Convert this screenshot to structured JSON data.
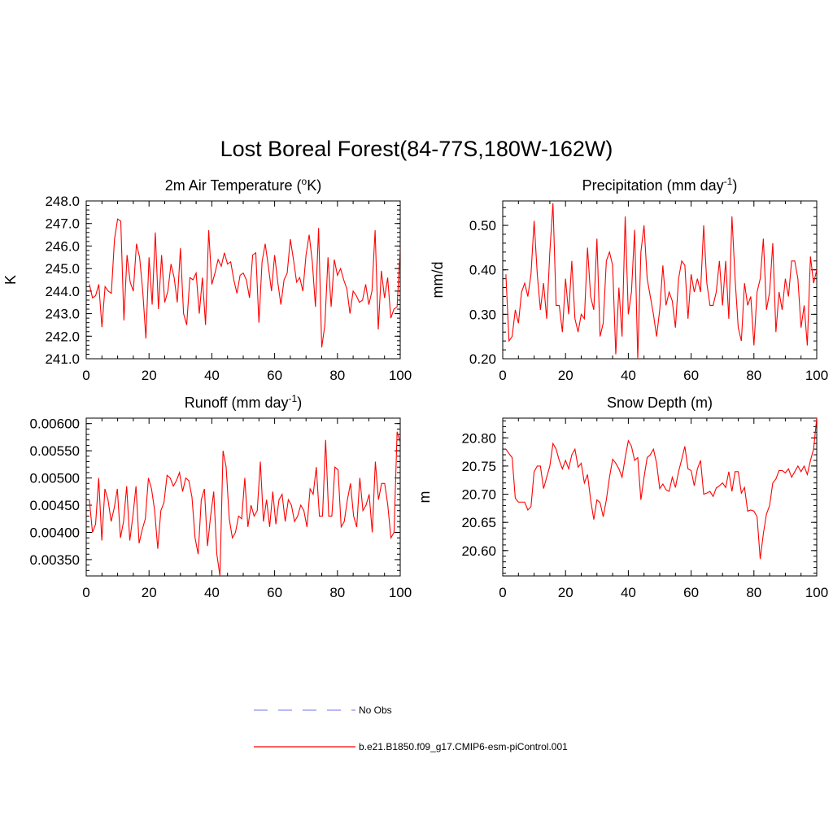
{
  "title": "Lost Boreal Forest(84-77S,180W-162W)",
  "legend": [
    {
      "label": "No Obs",
      "color": "#8f8ff0",
      "dash": true
    },
    {
      "label": "b.e21.B1850.f09_g17.CMIP6-esm-piControl.001",
      "color": "#ff0000",
      "dash": false
    }
  ],
  "chart_data": [
    {
      "type": "line",
      "title_main": "2m Air Temperature (",
      "title_sup": "o",
      "title_end": "K)",
      "ylabel": "K",
      "xlim": [
        0,
        100
      ],
      "ylim": [
        241.0,
        248.0
      ],
      "xticks": [
        0,
        20,
        40,
        60,
        80,
        100
      ],
      "yticks": [
        241.0,
        242.0,
        243.0,
        244.0,
        245.0,
        246.0,
        247.0,
        248.0
      ],
      "ytick_labels": [
        "241.0",
        "242.0",
        "243.0",
        "244.0",
        "245.0",
        "246.0",
        "247.0",
        "248.0"
      ],
      "yminor": 0.2,
      "color": "#ff0000",
      "values": [
        244.3,
        243.7,
        243.8,
        244.3,
        242.4,
        244.2,
        244.0,
        243.9,
        246.3,
        247.2,
        247.1,
        242.7,
        245.6,
        244.4,
        244.0,
        246.1,
        245.5,
        244.0,
        241.9,
        245.5,
        243.4,
        246.6,
        243.2,
        245.6,
        243.5,
        244.0,
        245.2,
        244.6,
        243.5,
        245.9,
        243.0,
        242.5,
        244.6,
        244.5,
        244.8,
        243.0,
        244.6,
        242.5,
        246.7,
        244.3,
        244.8,
        245.4,
        245.1,
        245.7,
        245.2,
        245.3,
        244.5,
        243.9,
        244.7,
        244.8,
        244.5,
        243.7,
        245.6,
        245.7,
        242.6,
        245.3,
        246.1,
        245.1,
        244.0,
        245.6,
        244.4,
        243.4,
        244.5,
        244.8,
        246.3,
        245.4,
        244.4,
        244.6,
        244.0,
        245.6,
        246.5,
        245.3,
        243.3,
        246.8,
        241.5,
        242.5,
        245.5,
        243.3,
        245.4,
        244.7,
        245.0,
        244.5,
        244.1,
        243.0,
        244.0,
        243.8,
        243.5,
        243.6,
        244.3,
        243.4,
        244.0,
        246.7,
        242.3,
        244.9,
        243.7,
        244.6,
        242.8,
        243.2,
        243.3,
        245.9
      ]
    },
    {
      "type": "line",
      "title_main": "Precipitation (mm day",
      "title_sup": "-1",
      "title_end": ")",
      "ylabel": "mm/d",
      "xlim": [
        0,
        100
      ],
      "ylim": [
        0.2,
        0.555
      ],
      "xticks": [
        0,
        20,
        40,
        60,
        80,
        100
      ],
      "yticks": [
        0.2,
        0.3,
        0.4,
        0.5
      ],
      "ytick_labels": [
        "0.20",
        "0.30",
        "0.40",
        "0.50"
      ],
      "yminor": 0.02,
      "color": "#ff0000",
      "values": [
        0.39,
        0.24,
        0.25,
        0.31,
        0.28,
        0.35,
        0.37,
        0.34,
        0.39,
        0.51,
        0.39,
        0.31,
        0.37,
        0.29,
        0.44,
        0.55,
        0.32,
        0.32,
        0.26,
        0.38,
        0.3,
        0.42,
        0.29,
        0.26,
        0.3,
        0.29,
        0.45,
        0.34,
        0.31,
        0.47,
        0.25,
        0.28,
        0.42,
        0.44,
        0.41,
        0.21,
        0.36,
        0.25,
        0.52,
        0.3,
        0.35,
        0.49,
        0.2,
        0.44,
        0.5,
        0.38,
        0.34,
        0.3,
        0.25,
        0.31,
        0.41,
        0.32,
        0.35,
        0.33,
        0.27,
        0.38,
        0.42,
        0.41,
        0.29,
        0.39,
        0.35,
        0.38,
        0.35,
        0.5,
        0.37,
        0.32,
        0.32,
        0.35,
        0.42,
        0.32,
        0.42,
        0.29,
        0.52,
        0.38,
        0.27,
        0.24,
        0.37,
        0.32,
        0.34,
        0.23,
        0.35,
        0.38,
        0.47,
        0.31,
        0.35,
        0.46,
        0.26,
        0.35,
        0.31,
        0.38,
        0.34,
        0.42,
        0.42,
        0.38,
        0.27,
        0.32,
        0.23,
        0.43,
        0.37,
        0.4
      ]
    },
    {
      "type": "line",
      "title_main": "Runoff (mm day",
      "title_sup": "-1",
      "title_end": ")",
      "ylabel": "",
      "xlim": [
        0,
        100
      ],
      "ylim": [
        0.0032,
        0.0061
      ],
      "xticks": [
        0,
        20,
        40,
        60,
        80,
        100
      ],
      "yticks": [
        0.0035,
        0.004,
        0.0045,
        0.005,
        0.0055,
        0.006
      ],
      "ytick_labels": [
        "0.00350",
        "0.00400",
        "0.00450",
        "0.00500",
        "0.00550",
        "0.00600"
      ],
      "yminor": 0.0001,
      "color": "#ff0000",
      "values": [
        0.0046,
        0.004,
        0.00415,
        0.005,
        0.00385,
        0.0048,
        0.0046,
        0.0042,
        0.00445,
        0.0048,
        0.0039,
        0.0042,
        0.00485,
        0.00385,
        0.0043,
        0.00485,
        0.0038,
        0.00405,
        0.00425,
        0.005,
        0.0048,
        0.0044,
        0.0037,
        0.0044,
        0.00455,
        0.00505,
        0.005,
        0.00485,
        0.00495,
        0.0051,
        0.00475,
        0.005,
        0.00495,
        0.00465,
        0.0039,
        0.0036,
        0.0046,
        0.0048,
        0.00375,
        0.0043,
        0.00475,
        0.0036,
        0.0032,
        0.0055,
        0.0052,
        0.00425,
        0.0039,
        0.004,
        0.0043,
        0.00425,
        0.005,
        0.0041,
        0.0045,
        0.0043,
        0.0044,
        0.0053,
        0.0042,
        0.0046,
        0.0041,
        0.00475,
        0.00415,
        0.0046,
        0.0047,
        0.0042,
        0.0046,
        0.0045,
        0.0042,
        0.0043,
        0.0045,
        0.0044,
        0.0041,
        0.0048,
        0.0047,
        0.0052,
        0.0043,
        0.0043,
        0.0057,
        0.0043,
        0.0043,
        0.0052,
        0.00515,
        0.0041,
        0.0042,
        0.0046,
        0.0049,
        0.0043,
        0.0041,
        0.005,
        0.0044,
        0.0045,
        0.0047,
        0.004,
        0.0053,
        0.0046,
        0.0049,
        0.0049,
        0.0045,
        0.0039,
        0.004,
        0.00585,
        0.00565
      ]
    },
    {
      "type": "line",
      "title_main": "Snow Depth (m)",
      "title_sup": "",
      "title_end": "",
      "ylabel": "m",
      "xlim": [
        0,
        100
      ],
      "ylim": [
        20.555,
        20.835
      ],
      "xticks": [
        0,
        20,
        40,
        60,
        80,
        100
      ],
      "yticks": [
        20.6,
        20.65,
        20.7,
        20.75,
        20.8
      ],
      "ytick_labels": [
        "20.60",
        "20.65",
        "20.70",
        "20.75",
        "20.80"
      ],
      "yminor": 0.01,
      "color": "#ff0000",
      "values": [
        20.78,
        20.772,
        20.765,
        20.693,
        20.686,
        20.686,
        20.686,
        20.672,
        20.678,
        20.74,
        20.75,
        20.75,
        20.71,
        20.73,
        20.75,
        20.79,
        20.78,
        20.76,
        20.745,
        20.76,
        20.745,
        20.77,
        20.78,
        20.748,
        20.755,
        20.72,
        20.735,
        20.69,
        20.655,
        20.69,
        20.685,
        20.66,
        20.69,
        20.73,
        20.762,
        20.755,
        20.745,
        20.73,
        20.765,
        20.795,
        20.785,
        20.76,
        20.765,
        20.69,
        20.73,
        20.765,
        20.77,
        20.78,
        20.755,
        20.71,
        20.718,
        20.708,
        20.705,
        20.73,
        20.712,
        20.74,
        20.762,
        20.785,
        20.745,
        20.742,
        20.715,
        20.745,
        20.76,
        20.7,
        20.702,
        20.705,
        20.696,
        20.711,
        20.715,
        20.72,
        20.712,
        20.74,
        20.705,
        20.74,
        20.74,
        20.702,
        20.712,
        20.67,
        20.672,
        20.67,
        20.66,
        20.585,
        20.63,
        20.665,
        20.68,
        20.72,
        20.727,
        20.742,
        20.742,
        20.738,
        20.745,
        20.73,
        20.74,
        20.75,
        20.74,
        20.75,
        20.735,
        20.76,
        20.78,
        20.835
      ]
    }
  ]
}
